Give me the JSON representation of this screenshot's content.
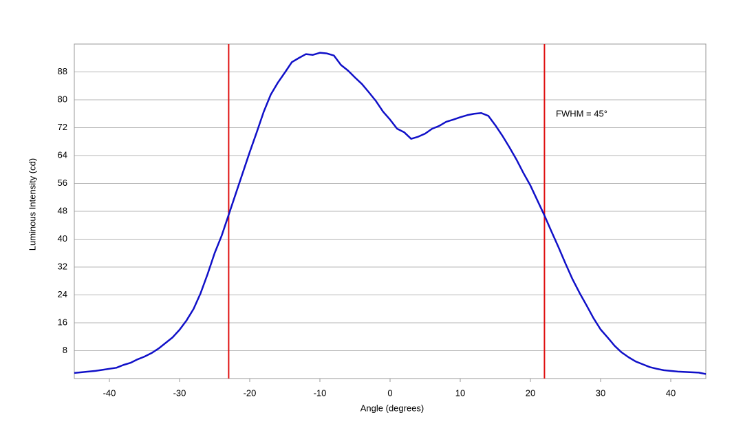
{
  "chart_data": {
    "type": "line",
    "x_label": "Angle (degrees)",
    "y_label": "Luminous Intensity (cd)",
    "annotation": "FWHM = 45°",
    "x": [
      -45,
      -44,
      -43,
      -42,
      -41,
      -40,
      -39,
      -38,
      -37,
      -36,
      -35,
      -34,
      -33,
      -32,
      -31,
      -30,
      -29,
      -28,
      -27,
      -26,
      -25,
      -24,
      -23,
      -22,
      -21,
      -20,
      -19,
      -18,
      -17,
      -16,
      -15,
      -14,
      -13,
      -12,
      -11,
      -10,
      -9,
      -8,
      -7,
      -6,
      -5,
      -4,
      -3,
      -2,
      -1,
      0,
      1,
      2,
      3,
      4,
      5,
      6,
      7,
      8,
      9,
      10,
      11,
      12,
      13,
      14,
      15,
      16,
      17,
      18,
      19,
      20,
      21,
      22,
      23,
      24,
      25,
      26,
      27,
      28,
      29,
      30,
      31,
      32,
      33,
      34,
      35,
      36,
      37,
      38,
      39,
      40,
      41,
      42,
      43,
      44,
      45
    ],
    "series": [
      {
        "color": "#1010c8",
        "values": [
          1.6,
          1.8,
          2.0,
          2.2,
          2.5,
          2.8,
          3.1,
          3.9,
          4.5,
          5.5,
          6.3,
          7.3,
          8.6,
          10.2,
          11.8,
          14,
          16.7,
          20,
          24.5,
          30,
          36,
          41,
          47,
          53,
          59,
          65,
          70.7,
          76.6,
          81.5,
          84.9,
          87.8,
          90.8,
          92,
          93.1,
          92.9,
          93.5,
          93.3,
          92.7,
          90,
          88.4,
          86.4,
          84.5,
          82.1,
          79.6,
          76.6,
          74.3,
          71.7,
          70.7,
          68.8,
          69.4,
          70.3,
          71.7,
          72.5,
          73.7,
          74.3,
          75,
          75.6,
          76,
          76.2,
          75.4,
          72.7,
          69.7,
          66.4,
          62.9,
          59,
          55.4,
          51.1,
          46.8,
          42.2,
          37.7,
          33,
          28.5,
          24.6,
          21,
          17.3,
          14.1,
          11.8,
          9.4,
          7.5,
          6.1,
          4.9,
          4.1,
          3.3,
          2.8,
          2.4,
          2.2,
          2.0,
          1.9,
          1.8,
          1.7,
          1.3
        ]
      }
    ],
    "vlines": [
      -23,
      22
    ],
    "vline_color": "#e01010",
    "xlim": [
      -45,
      45
    ],
    "ylim": [
      0,
      96
    ],
    "xticks": [
      -40,
      -30,
      -20,
      -10,
      0,
      10,
      20,
      30,
      40
    ],
    "yticks": [
      8,
      16,
      24,
      32,
      40,
      48,
      56,
      64,
      72,
      80,
      88
    ],
    "grid": true
  }
}
